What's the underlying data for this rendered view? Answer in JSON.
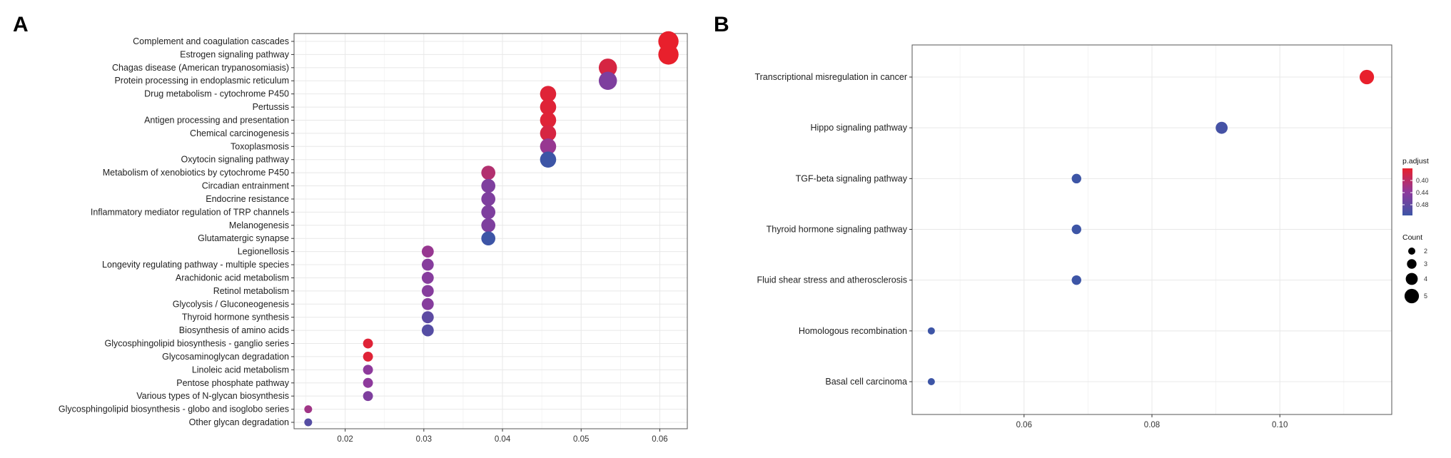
{
  "panels": {
    "a_label": "A",
    "b_label": "B"
  },
  "colors": {
    "high": "#e8202c",
    "mid": "#8e3a9c",
    "low": "#3d55a6",
    "grid": "#e8e8e8",
    "frame": "#555555"
  },
  "chart_data": [
    {
      "type": "scatter",
      "panel": "A",
      "title": "",
      "xlabel": "",
      "ylabel": "",
      "xlim": [
        0.0135,
        0.0635
      ],
      "xticks": [
        0.02,
        0.03,
        0.04,
        0.05,
        0.06
      ],
      "xtick_labels": [
        "0.02",
        "0.03",
        "0.04",
        "0.05",
        "0.06"
      ],
      "categories": [
        "Complement and coagulation cascades",
        "Estrogen signaling pathway",
        "Chagas disease (American trypanosomiasis)",
        "Protein processing in endoplasmic reticulum",
        "Drug metabolism - cytochrome P450",
        "Pertussis",
        "Antigen processing and presentation",
        "Chemical carcinogenesis",
        "Toxoplasmosis",
        "Oxytocin signaling pathway",
        "Metabolism of xenobiotics by cytochrome P450",
        "Circadian entrainment",
        "Endocrine resistance",
        "Inflammatory mediator regulation of TRP channels",
        "Melanogenesis",
        "Glutamatergic synapse",
        "Legionellosis",
        "Longevity regulating pathway - multiple species",
        "Arachidonic acid metabolism",
        "Retinol metabolism",
        "Glycolysis / Gluconeogenesis",
        "Thyroid hormone synthesis",
        "Biosynthesis of amino acids",
        "Glycosphingolipid biosynthesis - ganglio series",
        "Glycosaminoglycan degradation",
        "Linoleic acid metabolism",
        "Pentose phosphate pathway",
        "Various types of N-glycan biosynthesis",
        "Glycosphingolipid biosynthesis - globo and isoglobo series",
        "Other glycan degradation"
      ],
      "x": [
        0.0611,
        0.0611,
        0.0534,
        0.0534,
        0.0458,
        0.0458,
        0.0458,
        0.0458,
        0.0458,
        0.0458,
        0.0382,
        0.0382,
        0.0382,
        0.0382,
        0.0382,
        0.0382,
        0.0305,
        0.0305,
        0.0305,
        0.0305,
        0.0305,
        0.0305,
        0.0305,
        0.0229,
        0.0229,
        0.0229,
        0.0229,
        0.0229,
        0.0153,
        0.0153
      ],
      "count": [
        8,
        8,
        7,
        7,
        6,
        6,
        6,
        6,
        6,
        6,
        5,
        5,
        5,
        5,
        5,
        5,
        4,
        4,
        4,
        4,
        4,
        4,
        4,
        3,
        3,
        3,
        3,
        3,
        2,
        2
      ],
      "color_level": [
        0.0,
        0.0,
        0.1,
        0.6,
        0.05,
        0.05,
        0.05,
        0.1,
        0.45,
        1.0,
        0.3,
        0.6,
        0.6,
        0.6,
        0.6,
        1.0,
        0.45,
        0.55,
        0.55,
        0.55,
        0.55,
        0.8,
        0.85,
        0.05,
        0.05,
        0.5,
        0.5,
        0.6,
        0.4,
        0.85
      ]
    },
    {
      "type": "scatter",
      "panel": "B",
      "title": "",
      "xlabel": "",
      "ylabel": "",
      "xlim": [
        0.0425,
        0.1175
      ],
      "xticks": [
        0.06,
        0.08,
        0.1
      ],
      "xtick_labels": [
        "0.06",
        "0.08",
        "0.10"
      ],
      "categories": [
        "Transcriptional misregulation in cancer",
        "Hippo signaling pathway",
        "TGF-beta signaling pathway",
        "Thyroid hormone signaling pathway",
        "Fluid shear stress and atherosclerosis",
        "Homologous recombination",
        "Basal cell carcinoma"
      ],
      "x": [
        0.1136,
        0.0909,
        0.0682,
        0.0682,
        0.0682,
        0.0455,
        0.0455
      ],
      "count": [
        5,
        4,
        3,
        3,
        3,
        2,
        2
      ],
      "color_level": [
        0.0,
        0.95,
        1.0,
        1.0,
        1.0,
        1.0,
        1.0
      ],
      "legend": {
        "color_title": "p.adjust",
        "color_ticks": [
          "0.40",
          "0.44",
          "0.48"
        ],
        "size_title": "Count",
        "size_ticks": [
          "2",
          "3",
          "4",
          "5"
        ]
      }
    }
  ]
}
